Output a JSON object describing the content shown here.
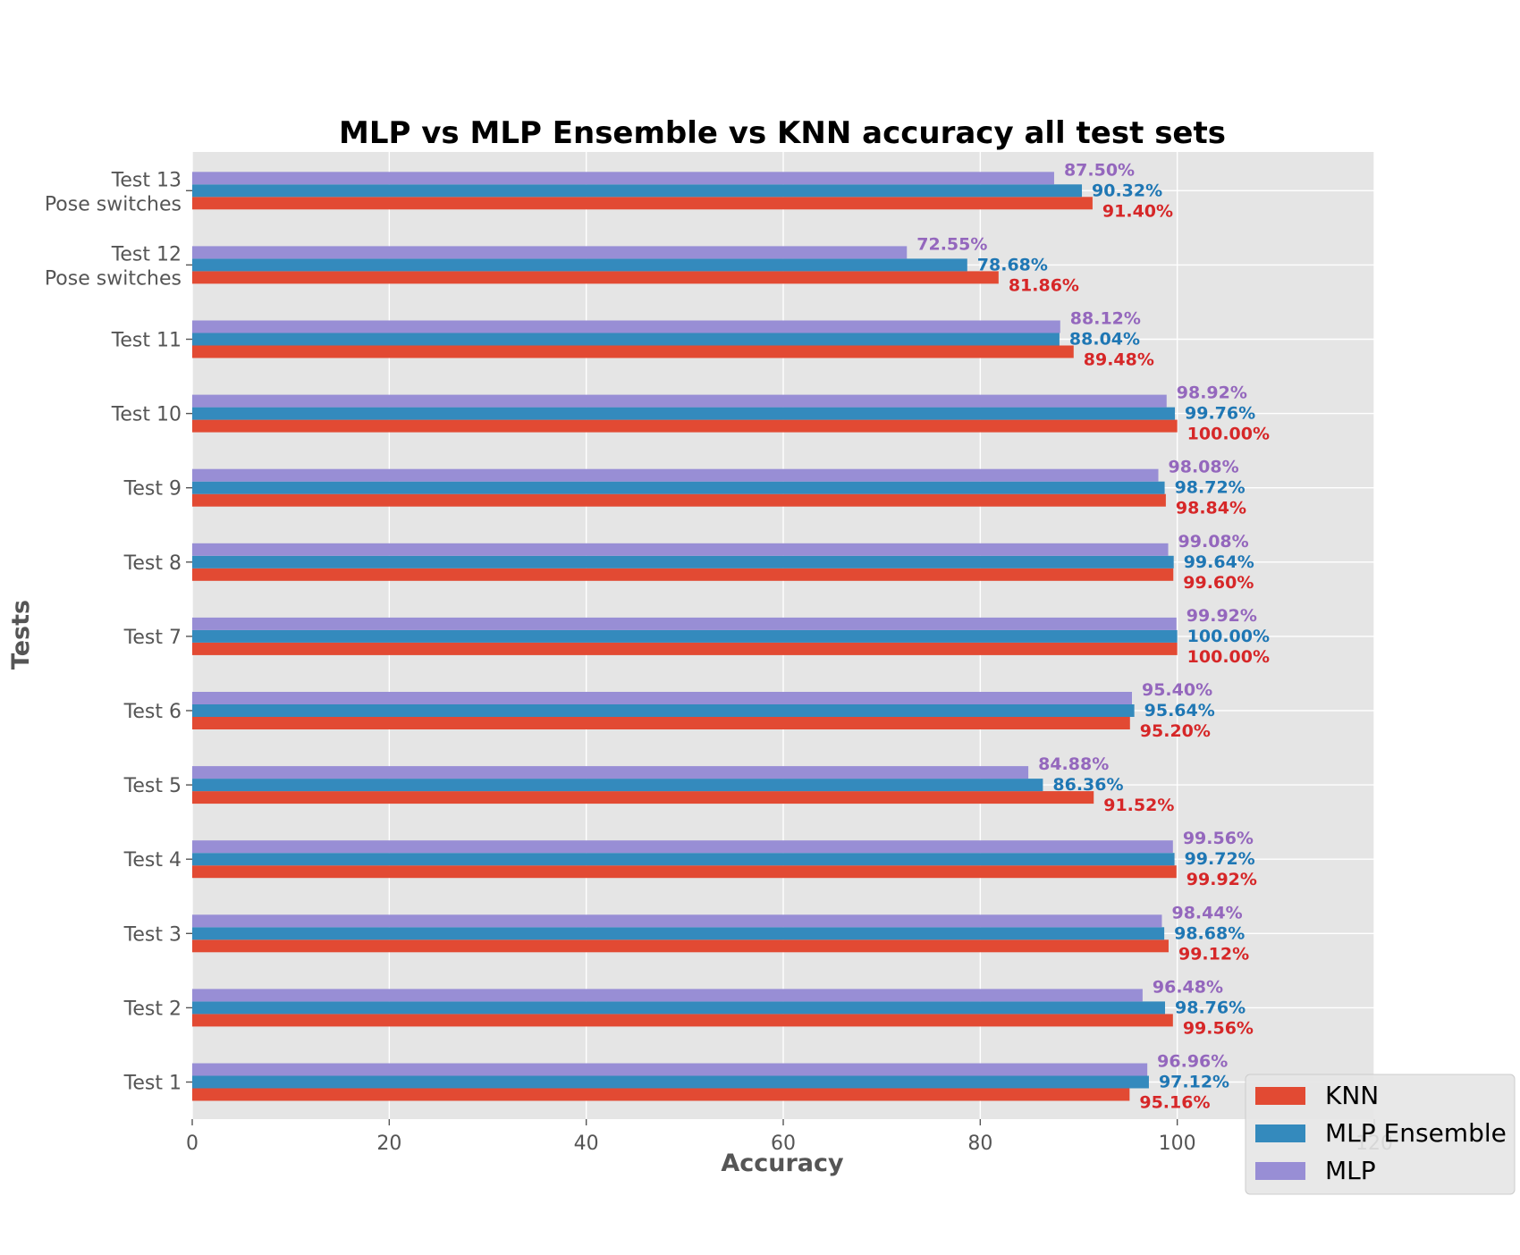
{
  "chart_data": {
    "type": "bar",
    "orientation": "horizontal",
    "title": "MLP vs MLP Ensemble vs KNN accuracy all test sets",
    "xlabel": "Accuracy",
    "ylabel": "Tests",
    "xlim": [
      0,
      120
    ],
    "xticks": [
      0,
      20,
      40,
      60,
      80,
      100,
      120
    ],
    "grid": true,
    "legend_position": "lower-right",
    "categories": [
      [
        "Test 1"
      ],
      [
        "Test 2"
      ],
      [
        "Test 3"
      ],
      [
        "Test 4"
      ],
      [
        "Test 5"
      ],
      [
        "Test 6"
      ],
      [
        "Test 7"
      ],
      [
        "Test 8"
      ],
      [
        "Test 9"
      ],
      [
        "Test 10"
      ],
      [
        "Test 11"
      ],
      [
        "Test 12",
        "Pose switches"
      ],
      [
        "Test 13",
        "Pose switches"
      ]
    ],
    "series": [
      {
        "name": "KNN",
        "color": "#E24A33",
        "label_color": "#d62728",
        "values": [
          95.16,
          99.56,
          99.12,
          99.92,
          91.52,
          95.2,
          100.0,
          99.6,
          98.84,
          100.0,
          89.48,
          81.86,
          91.4
        ],
        "labels": [
          "95.16%",
          "99.56%",
          "99.12%",
          "99.92%",
          "91.52%",
          "95.20%",
          "100.00%",
          "99.60%",
          "98.84%",
          "100.00%",
          "89.48%",
          "81.86%",
          "91.40%"
        ]
      },
      {
        "name": "MLP Ensemble",
        "color": "#348ABD",
        "label_color": "#1f77b4",
        "values": [
          97.12,
          98.76,
          98.68,
          99.72,
          86.36,
          95.64,
          100.0,
          99.64,
          98.72,
          99.76,
          88.04,
          78.68,
          90.32
        ],
        "labels": [
          "97.12%",
          "98.76%",
          "98.68%",
          "99.72%",
          "86.36%",
          "95.64%",
          "100.00%",
          "99.64%",
          "98.72%",
          "99.76%",
          "88.04%",
          "78.68%",
          "90.32%"
        ]
      },
      {
        "name": "MLP",
        "color": "#988ED5",
        "label_color": "#9467bd",
        "values": [
          96.96,
          96.48,
          98.44,
          99.56,
          84.88,
          95.4,
          99.92,
          99.08,
          98.08,
          98.92,
          88.12,
          72.55,
          87.5
        ],
        "labels": [
          "96.96%",
          "96.48%",
          "98.44%",
          "99.56%",
          "84.88%",
          "95.40%",
          "99.92%",
          "99.08%",
          "98.08%",
          "98.92%",
          "88.12%",
          "72.55%",
          "87.50%"
        ]
      }
    ]
  }
}
